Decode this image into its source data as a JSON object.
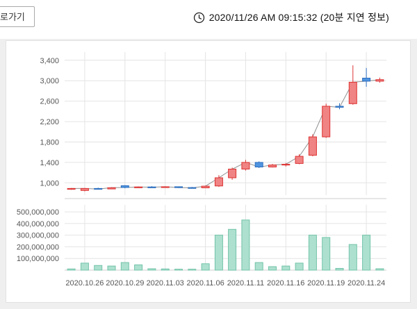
{
  "header": {
    "shortcut_button_label": "로가기",
    "timestamp": "2020/11/26 AM 09:15:32 (20분 지연 정보)"
  },
  "colors": {
    "up_fill": "#f08383",
    "up_stroke": "#dd3333",
    "down_fill": "#4f94e0",
    "down_stroke": "#2f6fbe",
    "volume_fill": "#ade0cf",
    "volume_stroke": "#72c3aa",
    "grid": "#e4e4e4",
    "border": "#cccccc",
    "axis_text": "#555555",
    "close_line": "#909090"
  },
  "chart_data": {
    "type": "candlestick+volume",
    "title": "",
    "legend": "none",
    "grid": "on",
    "price_axis": {
      "ticks": [
        3400,
        3000,
        2600,
        2200,
        1800,
        1400,
        1000
      ],
      "tick_labels": [
        "3,400",
        "3,000",
        "2,600",
        "2,200",
        "1,800",
        "1,400",
        "1,000"
      ],
      "min": 760,
      "max": 3560
    },
    "volume_axis": {
      "ticks": [
        500000000,
        400000000,
        300000000,
        200000000,
        100000000
      ],
      "tick_labels": [
        "500,000,000",
        "400,000,000",
        "300,000,000",
        "200,000,000",
        "100,000,000"
      ],
      "min": 0,
      "max": 560000000
    },
    "x_ticks": [
      {
        "index": 1,
        "label": "2020.10.26"
      },
      {
        "index": 4,
        "label": "2020.10.29"
      },
      {
        "index": 7,
        "label": "2020.11.03"
      },
      {
        "index": 10,
        "label": "2020.11.06"
      },
      {
        "index": 13,
        "label": "2020.11.11"
      },
      {
        "index": 16,
        "label": "2020.11.16"
      },
      {
        "index": 19,
        "label": "2020.11.19"
      },
      {
        "index": 22,
        "label": "2020.11.24"
      }
    ],
    "candles": [
      {
        "date": "2020.10.23",
        "open": 875,
        "high": 900,
        "low": 865,
        "close": 890,
        "volume": 10000000
      },
      {
        "date": "2020.10.26",
        "open": 850,
        "high": 900,
        "low": 835,
        "close": 890,
        "volume": 60000000
      },
      {
        "date": "2020.10.27",
        "open": 890,
        "high": 905,
        "low": 870,
        "close": 880,
        "volume": 40000000
      },
      {
        "date": "2020.10.28",
        "open": 880,
        "high": 915,
        "low": 875,
        "close": 905,
        "volume": 35000000
      },
      {
        "date": "2020.10.29",
        "open": 945,
        "high": 955,
        "low": 895,
        "close": 910,
        "volume": 65000000
      },
      {
        "date": "2020.10.30",
        "open": 910,
        "high": 930,
        "low": 900,
        "close": 920,
        "volume": 45000000
      },
      {
        "date": "2020.11.02",
        "open": 920,
        "high": 935,
        "low": 905,
        "close": 915,
        "volume": 12000000
      },
      {
        "date": "2020.11.03",
        "open": 915,
        "high": 930,
        "low": 905,
        "close": 925,
        "volume": 10000000
      },
      {
        "date": "2020.11.04",
        "open": 925,
        "high": 930,
        "low": 898,
        "close": 908,
        "volume": 8000000
      },
      {
        "date": "2020.11.05",
        "open": 908,
        "high": 920,
        "low": 893,
        "close": 903,
        "volume": 8000000
      },
      {
        "date": "2020.11.06",
        "open": 903,
        "high": 945,
        "low": 898,
        "close": 935,
        "volume": 55000000
      },
      {
        "date": "2020.11.09",
        "open": 940,
        "high": 1150,
        "low": 920,
        "close": 1100,
        "volume": 300000000
      },
      {
        "date": "2020.11.10",
        "open": 1100,
        "high": 1300,
        "low": 1060,
        "close": 1270,
        "volume": 350000000
      },
      {
        "date": "2020.11.11",
        "open": 1270,
        "high": 1450,
        "low": 1240,
        "close": 1400,
        "volume": 430000000
      },
      {
        "date": "2020.11.12",
        "open": 1400,
        "high": 1420,
        "low": 1290,
        "close": 1310,
        "volume": 65000000
      },
      {
        "date": "2020.11.13",
        "open": 1310,
        "high": 1370,
        "low": 1300,
        "close": 1350,
        "volume": 30000000
      },
      {
        "date": "2020.11.16",
        "open": 1350,
        "high": 1390,
        "low": 1320,
        "close": 1365,
        "volume": 35000000
      },
      {
        "date": "2020.11.17",
        "open": 1380,
        "high": 1560,
        "low": 1365,
        "close": 1520,
        "volume": 60000000
      },
      {
        "date": "2020.11.18",
        "open": 1540,
        "high": 1950,
        "low": 1520,
        "close": 1900,
        "volume": 300000000
      },
      {
        "date": "2020.11.19",
        "open": 1900,
        "high": 2550,
        "low": 1880,
        "close": 2500,
        "volume": 280000000
      },
      {
        "date": "2020.11.20",
        "open": 2500,
        "high": 2560,
        "low": 2440,
        "close": 2480,
        "volume": 15000000
      },
      {
        "date": "2020.11.23",
        "open": 2550,
        "high": 3300,
        "low": 2530,
        "close": 2970,
        "volume": 220000000
      },
      {
        "date": "2020.11.24",
        "open": 3050,
        "high": 3250,
        "low": 2880,
        "close": 2990,
        "volume": 300000000
      },
      {
        "date": "2020.11.25",
        "open": 2990,
        "high": 3060,
        "low": 2960,
        "close": 3020,
        "volume": 12000000
      }
    ]
  }
}
